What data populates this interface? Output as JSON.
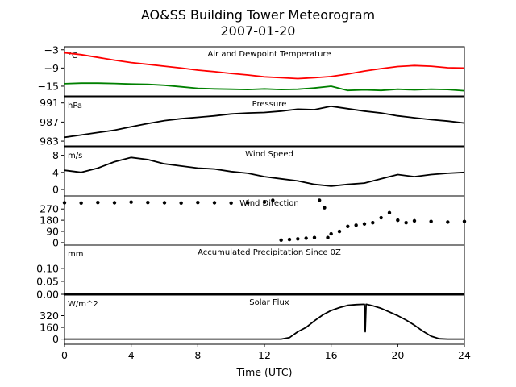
{
  "figure": {
    "title_line1": "AO&SS Building Tower Meteorogram",
    "title_line2": "2007-01-20",
    "xlabel": "Time (UTC)",
    "xticks": [
      "0",
      "4",
      "8",
      "12",
      "16",
      "20",
      "24"
    ]
  },
  "chart_data": [
    {
      "type": "line",
      "title": "Air and Dewpoint Temperature",
      "unit_label": "°C",
      "xlim": [
        0,
        24
      ],
      "ylim": [
        -18.2,
        -2
      ],
      "yticks": [
        -3,
        -9,
        -15
      ],
      "ytick_labels": [
        "−3",
        "−9",
        "−15"
      ],
      "series": [
        {
          "color": "#ff0000",
          "x": [
            0,
            1,
            2,
            3,
            4,
            5,
            6,
            7,
            8,
            9,
            10,
            11,
            12,
            13,
            14,
            15,
            16,
            17,
            18,
            19,
            20,
            21,
            22,
            23,
            24
          ],
          "values": [
            -4.0,
            -4.6,
            -5.5,
            -6.4,
            -7.2,
            -7.8,
            -8.4,
            -9.0,
            -9.7,
            -10.2,
            -10.8,
            -11.3,
            -11.9,
            -12.2,
            -12.5,
            -12.2,
            -11.8,
            -11.0,
            -10.0,
            -9.2,
            -8.5,
            -8.2,
            -8.4,
            -8.9,
            -9.0
          ]
        },
        {
          "color": "#008000",
          "x": [
            0,
            1,
            2,
            3,
            4,
            5,
            6,
            7,
            8,
            9,
            10,
            11,
            12,
            13,
            14,
            15,
            16,
            17,
            18,
            19,
            20,
            21,
            22,
            23,
            24
          ],
          "values": [
            -14.2,
            -14.0,
            -14.0,
            -14.1,
            -14.3,
            -14.4,
            -14.7,
            -15.2,
            -15.7,
            -15.9,
            -16.0,
            -16.1,
            -15.9,
            -16.1,
            -16.0,
            -15.6,
            -15.0,
            -16.4,
            -16.2,
            -16.4,
            -16.0,
            -16.2,
            -16.0,
            -16.1,
            -16.5
          ]
        }
      ]
    },
    {
      "type": "line",
      "title": "Pressure",
      "unit_label": "hPa",
      "xlim": [
        0,
        24
      ],
      "ylim": [
        982,
        992.3
      ],
      "yticks": [
        991,
        987,
        983
      ],
      "ytick_labels": [
        "991",
        "987",
        "983"
      ],
      "series": [
        {
          "color": "#000000",
          "x": [
            0,
            1,
            2,
            3,
            4,
            5,
            6,
            7,
            8,
            9,
            10,
            11,
            12,
            13,
            14,
            15,
            16,
            17,
            18,
            19,
            20,
            21,
            22,
            23,
            24
          ],
          "values": [
            983.8,
            984.3,
            984.8,
            985.3,
            986.0,
            986.7,
            987.3,
            987.7,
            988.0,
            988.3,
            988.7,
            988.9,
            989.0,
            989.3,
            989.7,
            989.6,
            990.3,
            989.8,
            989.3,
            988.9,
            988.3,
            987.9,
            987.5,
            987.2,
            986.8
          ]
        }
      ]
    },
    {
      "type": "line",
      "title": "Wind Speed",
      "unit_label": "m/s",
      "xlim": [
        0,
        24
      ],
      "ylim": [
        -1.5,
        10
      ],
      "yticks": [
        8,
        4,
        0
      ],
      "ytick_labels": [
        "8",
        "4",
        "0"
      ],
      "series": [
        {
          "color": "#000000",
          "x": [
            0,
            1,
            2,
            3,
            4,
            5,
            6,
            7,
            8,
            9,
            10,
            11,
            12,
            13,
            14,
            15,
            16,
            17,
            18,
            19,
            20,
            21,
            22,
            23,
            24
          ],
          "values": [
            4.5,
            4.0,
            5.0,
            6.5,
            7.5,
            7.0,
            6.0,
            5.5,
            5.0,
            4.8,
            4.2,
            3.8,
            3.0,
            2.5,
            2.0,
            1.2,
            0.8,
            1.2,
            1.5,
            2.5,
            3.5,
            3.0,
            3.5,
            3.8,
            4.0
          ]
        }
      ]
    },
    {
      "type": "scatter",
      "title": "Wind Direction",
      "unit_label": "",
      "xlim": [
        0,
        24
      ],
      "ylim": [
        -20,
        375
      ],
      "yticks": [
        270,
        180,
        90,
        0
      ],
      "ytick_labels": [
        "270",
        "180",
        "90",
        "0"
      ],
      "series": [
        {
          "color": "#000000",
          "x": [
            0,
            1,
            2,
            3,
            4,
            5,
            6,
            7,
            8,
            9,
            10,
            11,
            12,
            12.5,
            13,
            13.5,
            14,
            14.5,
            15,
            15.3,
            15.6,
            15.8,
            16,
            16.5,
            17,
            17.5,
            18,
            18.5,
            19,
            19.5,
            20,
            20.5,
            21,
            22,
            23,
            24
          ],
          "values": [
            320,
            318,
            322,
            320,
            325,
            322,
            320,
            318,
            322,
            320,
            318,
            320,
            325,
            340,
            20,
            25,
            30,
            35,
            40,
            340,
            280,
            40,
            70,
            90,
            130,
            140,
            150,
            160,
            200,
            240,
            180,
            160,
            175,
            170,
            165,
            170
          ]
        }
      ]
    },
    {
      "type": "line",
      "title": "Accumulated Precipitation Since 0Z",
      "unit_label": "mm",
      "xlim": [
        0,
        24
      ],
      "ylim": [
        0,
        0.19
      ],
      "yticks": [
        0.1,
        0.05,
        0.0
      ],
      "ytick_labels": [
        "0.10",
        "0.05",
        "0.00"
      ],
      "series": [
        {
          "color": "#000000",
          "x": [
            0,
            24
          ],
          "values": [
            0,
            0
          ]
        }
      ]
    },
    {
      "type": "line",
      "title": "Solar Flux",
      "unit_label": "W/m^2",
      "xlim": [
        0,
        24
      ],
      "ylim": [
        -70,
        600
      ],
      "yticks": [
        320,
        160,
        0
      ],
      "ytick_labels": [
        "320",
        "160",
        "0"
      ],
      "series": [
        {
          "color": "#000000",
          "x": [
            0,
            13.0,
            13.5,
            14.0,
            14.5,
            15.0,
            15.5,
            16.0,
            16.5,
            17.0,
            17.5,
            18.0,
            18.05,
            18.1,
            18.2,
            18.5,
            19.0,
            19.5,
            20.0,
            20.5,
            21.0,
            21.5,
            22.0,
            22.5,
            23.0,
            24
          ],
          "values": [
            0,
            0,
            20,
            100,
            160,
            250,
            330,
            390,
            430,
            460,
            470,
            475,
            100,
            475,
            470,
            455,
            420,
            370,
            320,
            260,
            190,
            110,
            40,
            5,
            0,
            0
          ]
        }
      ]
    }
  ]
}
